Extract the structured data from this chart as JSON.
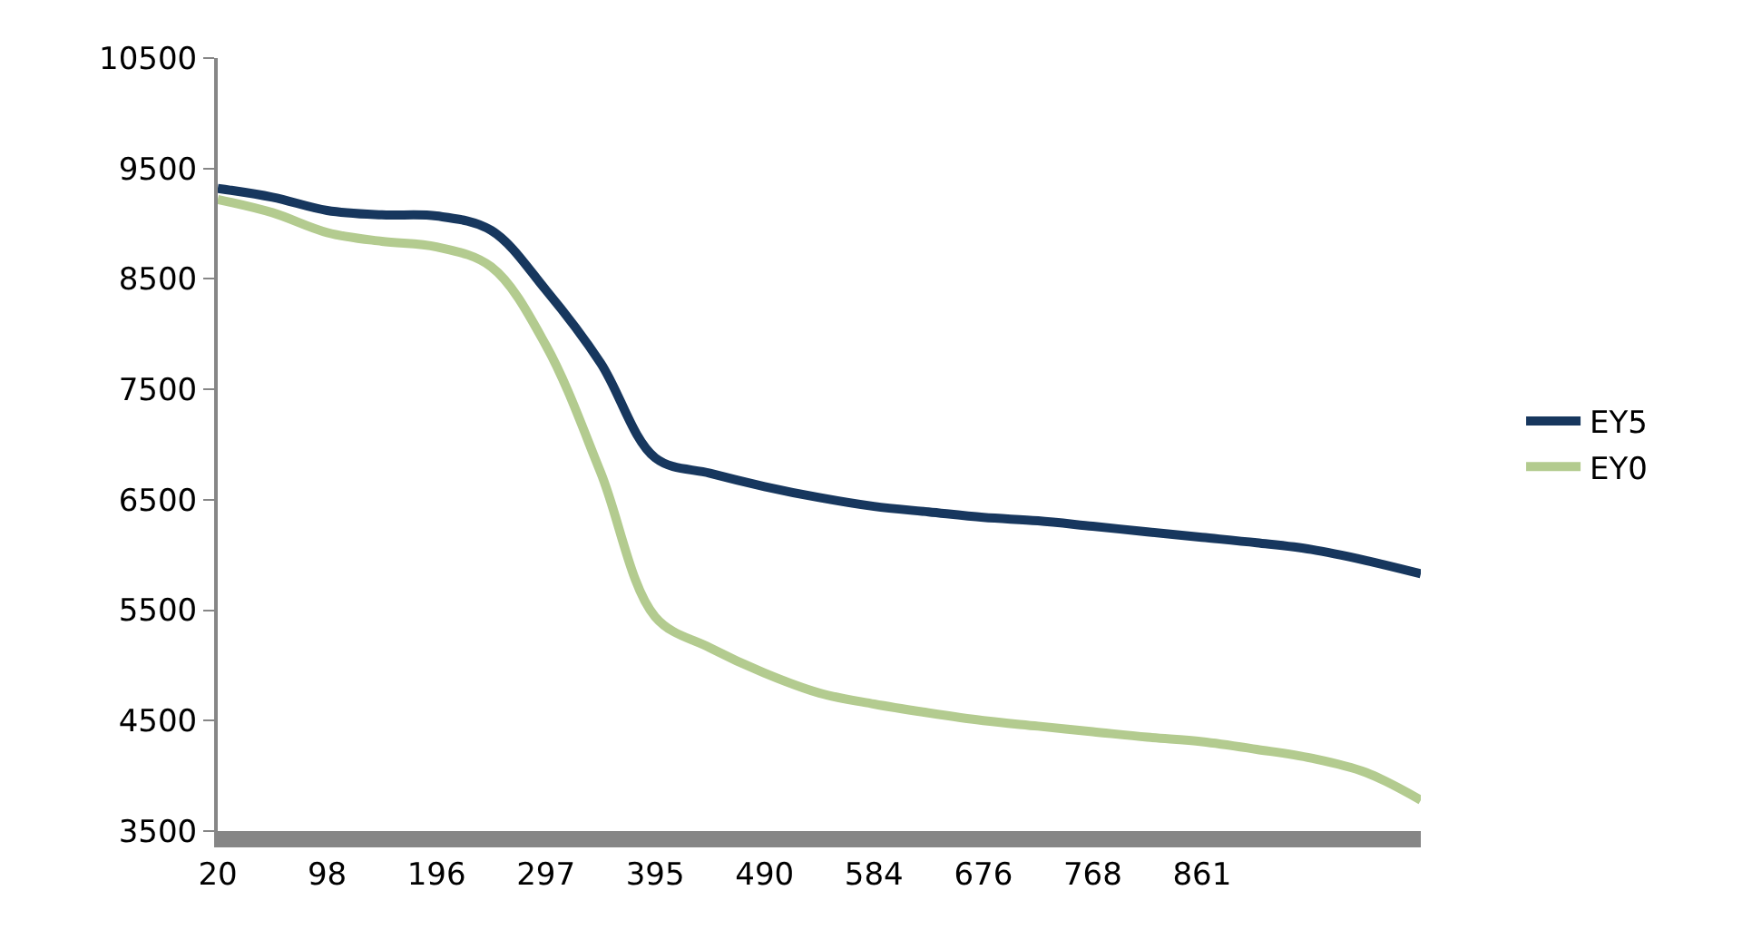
{
  "chart_data": {
    "type": "line",
    "categories": [
      "20",
      null,
      "98",
      null,
      "196",
      null,
      "297",
      null,
      "395",
      null,
      "490",
      null,
      "584",
      null,
      "676",
      null,
      "768",
      null,
      "861",
      null,
      null,
      null,
      null
    ],
    "series": [
      {
        "name": "EY5",
        "color": "#17375e",
        "values": [
          9320,
          9240,
          9120,
          9080,
          9070,
          8940,
          8400,
          7740,
          6880,
          6740,
          6620,
          6520,
          6440,
          6390,
          6340,
          6310,
          6260,
          6210,
          6160,
          6110,
          6050,
          5950,
          5830
        ]
      },
      {
        "name": "EY0",
        "color": "#b3cb8f",
        "values": [
          9220,
          9100,
          8920,
          8840,
          8790,
          8610,
          7900,
          6750,
          5440,
          5160,
          4930,
          4750,
          4650,
          4570,
          4500,
          4450,
          4400,
          4350,
          4310,
          4240,
          4160,
          4030,
          3780
        ]
      }
    ],
    "ylim": [
      3500,
      10500
    ],
    "yticks": [
      3500,
      4500,
      5500,
      6500,
      7500,
      8500,
      9500,
      10500
    ],
    "legend": "right",
    "marker": "none",
    "line_style": "solid"
  }
}
